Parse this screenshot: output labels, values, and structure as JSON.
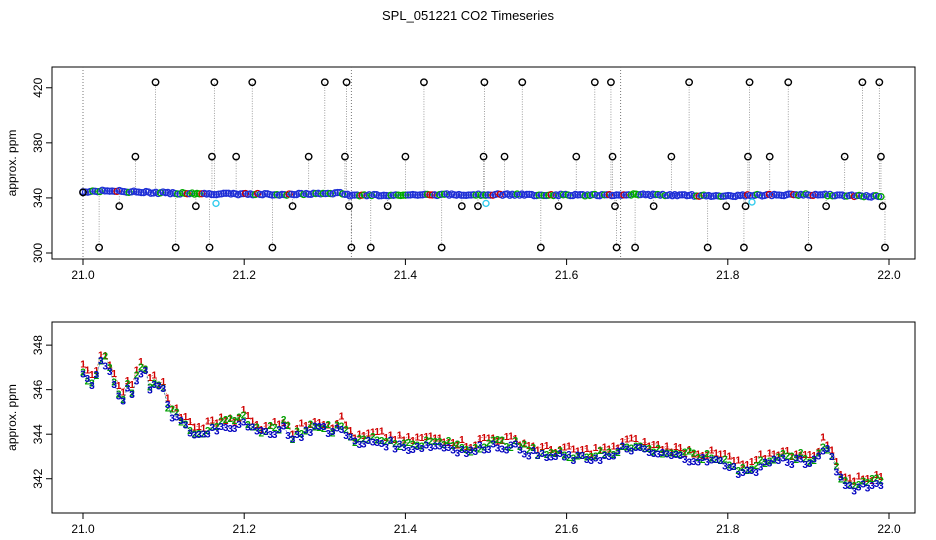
{
  "title": "SPL_051221  CO2 Timeseries",
  "chart_data": [
    {
      "type": "scatter",
      "ylabel": "approx. ppm",
      "xlim": [
        21.0,
        22.0
      ],
      "ylim": [
        300,
        430
      ],
      "xticks": [
        "21.0",
        "21.2",
        "21.4",
        "21.6",
        "21.8",
        "22.0"
      ],
      "yticks": [
        "300",
        "340",
        "380",
        "420"
      ],
      "baseline": [
        [
          21.0,
          344.5
        ],
        [
          21.03,
          345.2
        ],
        [
          21.08,
          344.0
        ],
        [
          21.15,
          343.0
        ],
        [
          21.25,
          342.5
        ],
        [
          21.32,
          343.5
        ],
        [
          21.33,
          342.0
        ],
        [
          21.5,
          342.5
        ],
        [
          21.55,
          342.2
        ],
        [
          21.66,
          342.0
        ],
        [
          21.67,
          342.5
        ],
        [
          21.8,
          341.5
        ],
        [
          21.84,
          342.0
        ],
        [
          21.9,
          342.5
        ],
        [
          21.99,
          341.0
        ]
      ],
      "spikes": [
        {
          "x": 21.0,
          "y": 344
        },
        {
          "x": 21.02,
          "y": 304
        },
        {
          "x": 21.045,
          "y": 334
        },
        {
          "x": 21.065,
          "y": 370
        },
        {
          "x": 21.09,
          "y": 424
        },
        {
          "x": 21.115,
          "y": 304
        },
        {
          "x": 21.14,
          "y": 334
        },
        {
          "x": 21.157,
          "y": 304
        },
        {
          "x": 21.16,
          "y": 370
        },
        {
          "x": 21.163,
          "y": 424
        },
        {
          "x": 21.19,
          "y": 370
        },
        {
          "x": 21.21,
          "y": 424
        },
        {
          "x": 21.235,
          "y": 304
        },
        {
          "x": 21.26,
          "y": 334
        },
        {
          "x": 21.28,
          "y": 370
        },
        {
          "x": 21.3,
          "y": 424
        },
        {
          "x": 21.325,
          "y": 370
        },
        {
          "x": 21.327,
          "y": 424
        },
        {
          "x": 21.33,
          "y": 334
        },
        {
          "x": 21.333,
          "y": 304
        },
        {
          "x": 21.357,
          "y": 304
        },
        {
          "x": 21.378,
          "y": 334
        },
        {
          "x": 21.4,
          "y": 370
        },
        {
          "x": 21.423,
          "y": 424
        },
        {
          "x": 21.445,
          "y": 304
        },
        {
          "x": 21.47,
          "y": 334
        },
        {
          "x": 21.49,
          "y": 334
        },
        {
          "x": 21.497,
          "y": 370
        },
        {
          "x": 21.498,
          "y": 424
        },
        {
          "x": 21.523,
          "y": 370
        },
        {
          "x": 21.545,
          "y": 424
        },
        {
          "x": 21.568,
          "y": 304
        },
        {
          "x": 21.59,
          "y": 334
        },
        {
          "x": 21.612,
          "y": 370
        },
        {
          "x": 21.635,
          "y": 424
        },
        {
          "x": 21.655,
          "y": 424
        },
        {
          "x": 21.657,
          "y": 370
        },
        {
          "x": 21.66,
          "y": 334
        },
        {
          "x": 21.662,
          "y": 304
        },
        {
          "x": 21.685,
          "y": 304
        },
        {
          "x": 21.708,
          "y": 334
        },
        {
          "x": 21.73,
          "y": 370
        },
        {
          "x": 21.752,
          "y": 424
        },
        {
          "x": 21.775,
          "y": 304
        },
        {
          "x": 21.798,
          "y": 334
        },
        {
          "x": 21.82,
          "y": 304
        },
        {
          "x": 21.822,
          "y": 334
        },
        {
          "x": 21.825,
          "y": 370
        },
        {
          "x": 21.827,
          "y": 424
        },
        {
          "x": 21.852,
          "y": 370
        },
        {
          "x": 21.875,
          "y": 424
        },
        {
          "x": 21.9,
          "y": 304
        },
        {
          "x": 21.922,
          "y": 334
        },
        {
          "x": 21.945,
          "y": 370
        },
        {
          "x": 21.967,
          "y": 424
        },
        {
          "x": 21.988,
          "y": 424
        },
        {
          "x": 21.99,
          "y": 370
        },
        {
          "x": 21.992,
          "y": 334
        },
        {
          "x": 21.995,
          "y": 304
        }
      ],
      "cyan_points": [
        {
          "x": 21.165,
          "y": 336
        },
        {
          "x": 21.5,
          "y": 336
        },
        {
          "x": 21.83,
          "y": 337
        }
      ]
    },
    {
      "type": "line",
      "ylabel": "approx. ppm",
      "xlim": [
        21.0,
        22.0
      ],
      "ylim": [
        341,
        348.5
      ],
      "xticks": [
        "21.0",
        "21.2",
        "21.4",
        "21.6",
        "21.8",
        "22.0"
      ],
      "yticks": [
        "342",
        "344",
        "346",
        "348"
      ],
      "series": [
        {
          "name": "1",
          "color": "#d00000",
          "offset": 0.35
        },
        {
          "name": "2",
          "color": "#00a000",
          "offset": 0.15
        },
        {
          "name": "3",
          "color": "#0000c0",
          "offset": 0.0
        }
      ],
      "x": [
        21.0,
        21.01,
        21.02,
        21.025,
        21.03,
        21.035,
        21.04,
        21.05,
        21.055,
        21.06,
        21.065,
        21.07,
        21.075,
        21.08,
        21.085,
        21.09,
        21.095,
        21.1,
        21.105,
        21.11,
        21.12,
        21.13,
        21.14,
        21.15,
        21.16,
        21.17,
        21.18,
        21.19,
        21.2,
        21.21,
        21.22,
        21.23,
        21.24,
        21.25,
        21.26,
        21.27,
        21.28,
        21.29,
        21.3,
        21.31,
        21.32,
        21.33,
        21.34,
        21.36,
        21.38,
        21.4,
        21.42,
        21.44,
        21.46,
        21.48,
        21.5,
        21.52,
        21.54,
        21.56,
        21.58,
        21.6,
        21.62,
        21.64,
        21.66,
        21.67,
        21.68,
        21.7,
        21.72,
        21.74,
        21.76,
        21.78,
        21.8,
        21.81,
        21.82,
        21.83,
        21.84,
        21.86,
        21.88,
        21.89,
        21.9,
        21.91,
        21.915,
        21.92,
        21.93,
        21.94,
        21.95,
        21.96,
        21.97,
        21.98,
        21.99
      ],
      "values": [
        346.7,
        346.2,
        346.9,
        347.9,
        346.6,
        347.0,
        346.0,
        345.5,
        346.2,
        345.7,
        346.3,
        347.0,
        346.6,
        346.9,
        345.6,
        346.5,
        345.9,
        346.1,
        345.2,
        344.9,
        344.6,
        344.2,
        344.0,
        344.0,
        344.3,
        344.3,
        344.4,
        344.4,
        344.7,
        344.2,
        344.0,
        344.2,
        344.1,
        344.4,
        343.8,
        344.0,
        344.2,
        344.4,
        344.2,
        344.1,
        344.4,
        343.9,
        343.5,
        343.7,
        343.6,
        343.4,
        343.5,
        343.5,
        343.4,
        343.2,
        343.5,
        343.5,
        343.4,
        343.1,
        343.0,
        343.0,
        342.9,
        343.0,
        343.0,
        343.4,
        343.4,
        343.2,
        343.1,
        343.0,
        342.9,
        342.8,
        342.7,
        342.4,
        342.3,
        342.3,
        342.6,
        342.9,
        342.8,
        342.9,
        342.6,
        342.8,
        343.3,
        343.5,
        342.8,
        342.0,
        341.7,
        341.6,
        341.8,
        341.7,
        341.8
      ]
    }
  ]
}
